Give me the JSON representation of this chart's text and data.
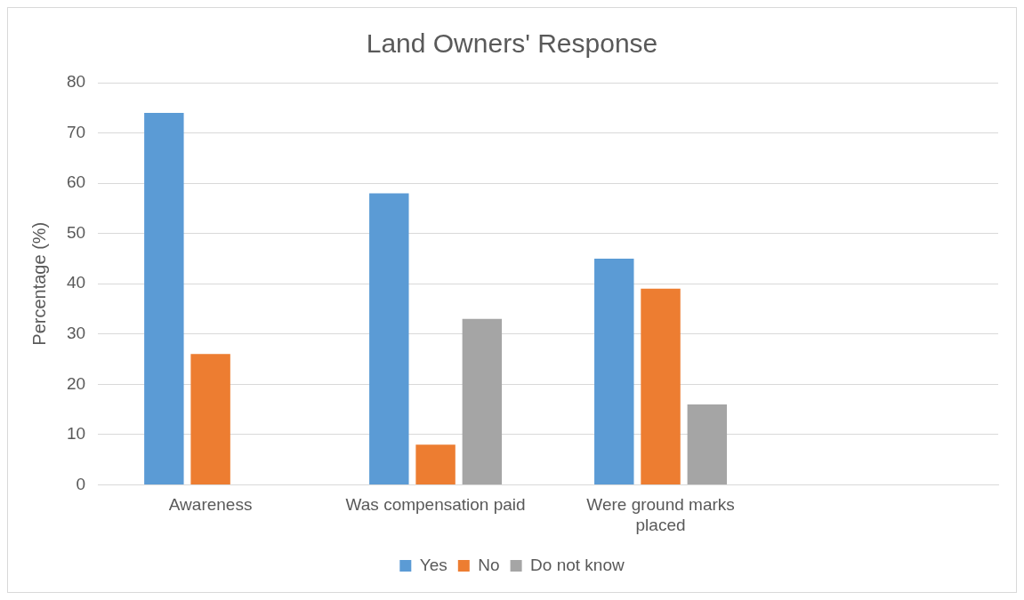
{
  "chart_data": {
    "type": "bar",
    "title": "Land Owners' Response",
    "ylabel": "Percentage (%)",
    "categories": [
      "Awareness",
      "Was compensation paid",
      "Were ground marks placed",
      null
    ],
    "series": [
      {
        "name": "Yes",
        "color": "#5b9bd5",
        "values": [
          74,
          58,
          45,
          null
        ]
      },
      {
        "name": "No",
        "color": "#ed7d31",
        "values": [
          26,
          8,
          39,
          null
        ]
      },
      {
        "name": "Do not know",
        "color": "#a5a5a5",
        "values": [
          null,
          33,
          16,
          null
        ]
      }
    ],
    "ylim": [
      0,
      80
    ],
    "yticks": [
      0,
      10,
      20,
      30,
      40,
      50,
      60,
      70,
      80
    ],
    "grid": "y",
    "legend": "bottom"
  }
}
